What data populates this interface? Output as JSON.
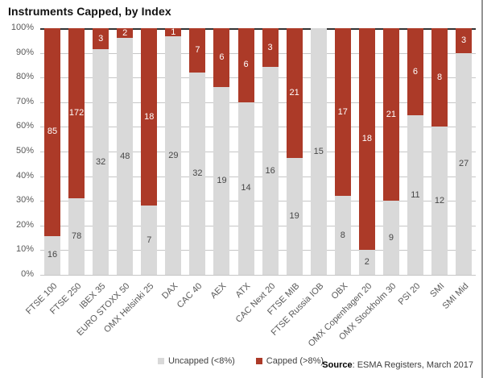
{
  "title": "Instruments Capped, by Index",
  "legend": {
    "uncapped_label": "Uncapped (<8%)",
    "capped_label": "Capped (>8%)"
  },
  "source": {
    "prefix": "Source",
    "text": ": ESMA Registers, March 2017"
  },
  "colors": {
    "capped": "#AC3A28",
    "uncapped": "#D9D9D9",
    "grid": "#C6C6C6",
    "axistop": "#333333",
    "text": "#595959"
  },
  "chart_data": {
    "type": "bar",
    "stacked": true,
    "normalized_to": "100%",
    "title": "Instruments Capped, by Index",
    "categories": [
      "FTSE 100",
      "FTSE 250",
      "IBEX 35",
      "EURO STOXX 50",
      "OMX Helsinki 25",
      "DAX",
      "CAC 40",
      "AEX",
      "ATX",
      "CAC Next 20",
      "FTSE MIB",
      "FTSE Russia IOB",
      "OBX",
      "OMX Copenhagen 20",
      "OMX Stockholm 30",
      "PSI 20",
      "SMI",
      "SMI Mid"
    ],
    "series": [
      {
        "name": "Uncapped (<8%)",
        "values": [
          16,
          78,
          32,
          48,
          7,
          29,
          32,
          19,
          14,
          16,
          19,
          15,
          8,
          2,
          9,
          11,
          12,
          27
        ]
      },
      {
        "name": "Capped (>8%)",
        "values": [
          85,
          172,
          3,
          2,
          18,
          1,
          7,
          6,
          6,
          3,
          21,
          0,
          17,
          18,
          21,
          6,
          8,
          3
        ]
      }
    ],
    "y_ticks": [
      "0%",
      "10%",
      "20%",
      "30%",
      "40%",
      "50%",
      "60%",
      "70%",
      "80%",
      "90%",
      "100%"
    ],
    "ylim": [
      0,
      100
    ],
    "grid": true,
    "legend_position": "bottom"
  }
}
